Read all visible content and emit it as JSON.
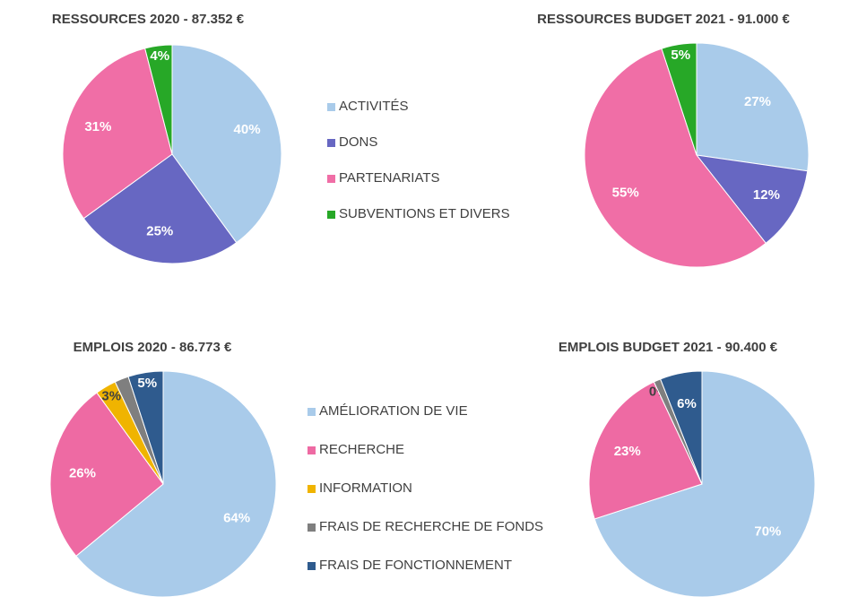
{
  "chart_data": [
    {
      "type": "pie",
      "categories": [
        "ACTIVITÉS",
        "DONS",
        "PARTENARIATS",
        "SUBVENTIONS ET DIVERS"
      ],
      "colors": [
        "#a9cbea",
        "#6767c2",
        "#f06ea6",
        "#27a827"
      ],
      "pies": [
        {
          "title": "RESSOURCES  2020 - 87.352 €",
          "values": [
            40,
            25,
            31,
            4
          ],
          "value_labels": [
            "40%",
            "25%",
            "31%",
            "4%"
          ]
        },
        {
          "title": "RESSOURCES  BUDGET 2021 - 91.000 €",
          "values": [
            27,
            12,
            55,
            5
          ],
          "value_labels": [
            "27%",
            "12%",
            "55%",
            "5%"
          ]
        }
      ]
    },
    {
      "type": "pie",
      "categories": [
        "AMÉLIORATION DE VIE",
        "RECHERCHE",
        "INFORMATION",
        "FRAIS DE RECHERCHE DE FONDS",
        "FRAIS DE FONCTIONNEMENT"
      ],
      "colors": [
        "#a9cbea",
        "#ee6aa3",
        "#f0b400",
        "#7f7f7f",
        "#2f5b8e"
      ],
      "pies": [
        {
          "title": "EMPLOIS  2020 - 86.773 €",
          "values": [
            64,
            26,
            3,
            2,
            5
          ],
          "value_labels": [
            "64%",
            "26%",
            "3%",
            null,
            "5%"
          ]
        },
        {
          "title": "EMPLOIS  BUDGET 2021 - 90.400 €",
          "values": [
            70,
            23,
            0,
            1,
            6
          ],
          "value_labels": [
            "70%",
            "23%",
            "0%",
            null,
            "6%"
          ]
        }
      ]
    }
  ]
}
